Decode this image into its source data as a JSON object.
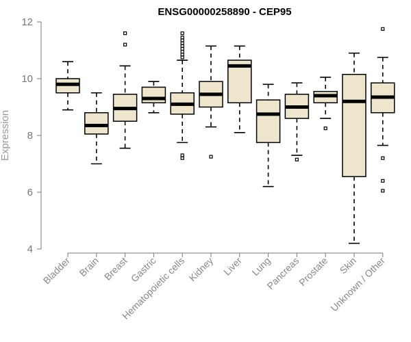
{
  "chart_data": {
    "type": "boxplot",
    "title": "ENSG00000258890 - CEP95",
    "ylabel": "Expression",
    "xlabel": "",
    "ylim": [
      4,
      12
    ],
    "yticks": [
      4,
      6,
      8,
      10,
      12
    ],
    "colors": {
      "box_fill": "#ede6cc",
      "box_stroke": "#000000"
    },
    "categories": [
      "Bladder",
      "Brain",
      "Breast",
      "Gastric",
      "Hematopoietic cells",
      "Kidney",
      "Liver",
      "Lung",
      "Pancreas",
      "Prostate",
      "Skin",
      "Unknown / Other"
    ],
    "boxes": [
      {
        "name": "Bladder",
        "whisker_low": 8.9,
        "q1": 9.5,
        "median": 9.8,
        "q3": 10.0,
        "whisker_high": 10.6,
        "outliers": []
      },
      {
        "name": "Brain",
        "whisker_low": 7.0,
        "q1": 8.05,
        "median": 8.35,
        "q3": 8.8,
        "whisker_high": 9.5,
        "outliers": []
      },
      {
        "name": "Breast",
        "whisker_low": 7.55,
        "q1": 8.5,
        "median": 8.95,
        "q3": 9.45,
        "whisker_high": 10.45,
        "outliers": [
          11.6,
          11.2
        ]
      },
      {
        "name": "Gastric",
        "whisker_low": 8.8,
        "q1": 9.15,
        "median": 9.3,
        "q3": 9.7,
        "whisker_high": 9.9,
        "outliers": []
      },
      {
        "name": "Hematopoietic cells",
        "whisker_low": 7.75,
        "q1": 8.75,
        "median": 9.1,
        "q3": 9.5,
        "whisker_high": 10.65,
        "outliers": [
          11.6,
          11.45,
          11.35,
          11.25,
          11.15,
          11.05,
          10.95,
          10.85,
          10.75,
          7.3,
          7.2
        ]
      },
      {
        "name": "Kidney",
        "whisker_low": 8.3,
        "q1": 9.0,
        "median": 9.45,
        "q3": 9.9,
        "whisker_high": 11.15,
        "outliers": [
          7.25
        ]
      },
      {
        "name": "Liver",
        "whisker_low": 8.1,
        "q1": 9.15,
        "median": 10.45,
        "q3": 10.65,
        "whisker_high": 11.15,
        "outliers": []
      },
      {
        "name": "Lung",
        "whisker_low": 6.2,
        "q1": 7.75,
        "median": 8.75,
        "q3": 9.25,
        "whisker_high": 9.8,
        "outliers": []
      },
      {
        "name": "Pancreas",
        "whisker_low": 7.3,
        "q1": 8.6,
        "median": 9.0,
        "q3": 9.45,
        "whisker_high": 9.85,
        "outliers": [
          7.15
        ]
      },
      {
        "name": "Prostate",
        "whisker_low": 8.6,
        "q1": 9.15,
        "median": 9.4,
        "q3": 9.55,
        "whisker_high": 10.05,
        "outliers": [
          8.25
        ]
      },
      {
        "name": "Skin",
        "whisker_low": 4.2,
        "q1": 6.55,
        "median": 9.2,
        "q3": 10.15,
        "whisker_high": 10.9,
        "outliers": []
      },
      {
        "name": "Unknown / Other",
        "whisker_low": 7.65,
        "q1": 8.8,
        "median": 9.35,
        "q3": 9.85,
        "whisker_high": 10.75,
        "outliers": [
          11.75,
          7.2,
          6.4,
          6.05
        ]
      }
    ]
  }
}
